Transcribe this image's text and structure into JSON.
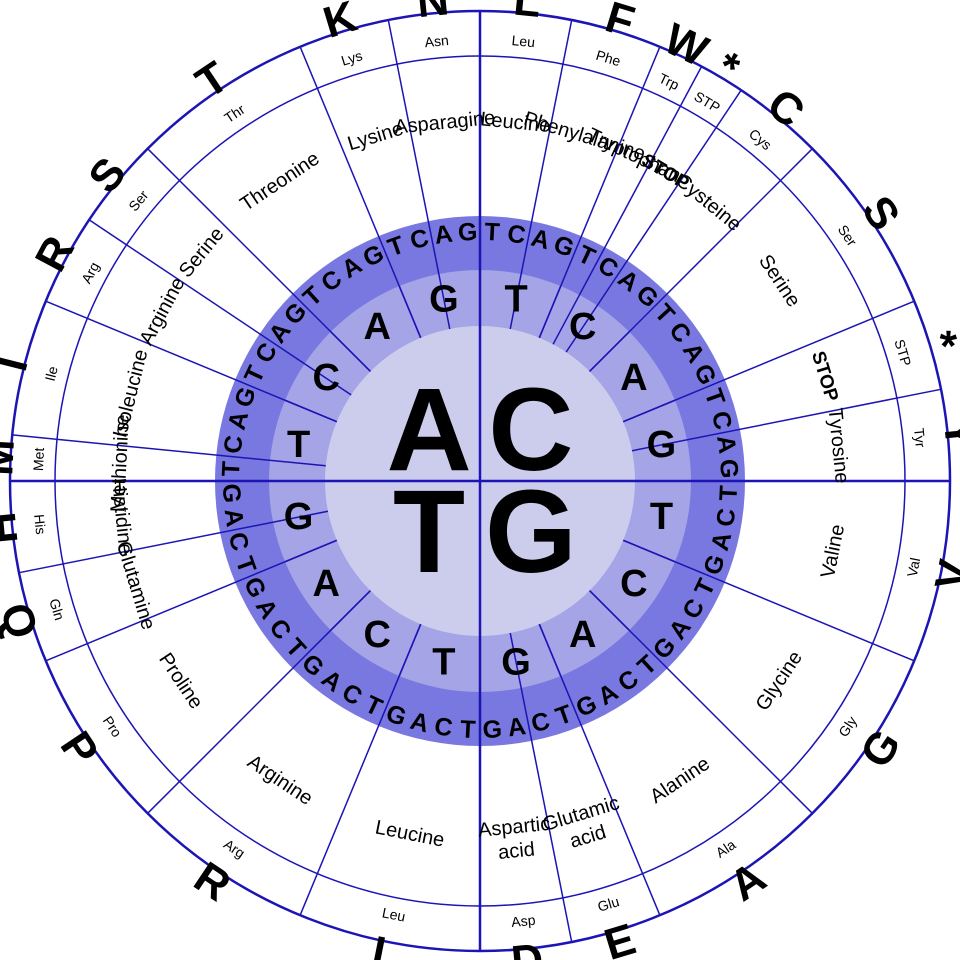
{
  "colors": {
    "line": "#1c14b4",
    "ring_outer": "#7878e0",
    "ring_mid": "#a4a4e6",
    "ring_inner": "#ccccec",
    "background": "#ffffff"
  },
  "first_bases": [
    "A",
    "C",
    "G",
    "T"
  ],
  "second_bases": [
    "T",
    "C",
    "A",
    "G"
  ],
  "third_bases": [
    "T",
    "C",
    "A",
    "G"
  ],
  "amino_acids": [
    {
      "name": "Methionine",
      "abbr": "Met",
      "letter": "M",
      "count": 1
    },
    {
      "name": "Isoleucine",
      "abbr": "Ile",
      "letter": "I",
      "count": 3
    },
    {
      "name": "Arginine",
      "abbr": "Arg",
      "letter": "R",
      "count": 2
    },
    {
      "name": "Serine",
      "abbr": "Ser",
      "letter": "S",
      "count": 2
    },
    {
      "name": "Threonine",
      "abbr": "Thr",
      "letter": "T",
      "count": 4
    },
    {
      "name": "Lysine",
      "abbr": "Lys",
      "letter": "K",
      "count": 2
    },
    {
      "name": "Asparagine",
      "abbr": "Asn",
      "letter": "N",
      "count": 2
    },
    {
      "name": "Leucine",
      "abbr": "Leu",
      "letter": "L",
      "count": 2
    },
    {
      "name": "Phenylalanine",
      "abbr": "Phe",
      "letter": "F",
      "count": 2
    },
    {
      "name": "Tryptophan",
      "abbr": "Trp",
      "letter": "W",
      "count": 1
    },
    {
      "name": "STOP",
      "abbr": "STP",
      "letter": "*",
      "count": 1
    },
    {
      "name": "Cysteine",
      "abbr": "Cys",
      "letter": "C",
      "count": 2
    },
    {
      "name": "Serine",
      "abbr": "Ser",
      "letter": "S",
      "count": 4
    },
    {
      "name": "STOP",
      "abbr": "STP",
      "letter": "*",
      "count": 2
    },
    {
      "name": "Tyrosine",
      "abbr": "Tyr",
      "letter": "Y",
      "count": 2
    },
    {
      "name": "Valine",
      "abbr": "Val",
      "letter": "V",
      "count": 4
    },
    {
      "name": "Glycine",
      "abbr": "Gly",
      "letter": "G",
      "count": 4
    },
    {
      "name": "Alanine",
      "abbr": "Ala",
      "letter": "A",
      "count": 4
    },
    {
      "name": "Glutamic acid",
      "abbr": "Glu",
      "letter": "E",
      "count": 2
    },
    {
      "name": "Aspartic acid",
      "abbr": "Asp",
      "letter": "D",
      "count": 2
    },
    {
      "name": "Leucine",
      "abbr": "Leu",
      "letter": "L",
      "count": 4
    },
    {
      "name": "Arginine",
      "abbr": "Arg",
      "letter": "R",
      "count": 4
    },
    {
      "name": "Proline",
      "abbr": "Pro",
      "letter": "P",
      "count": 4
    },
    {
      "name": "Glutamine",
      "abbr": "Gln",
      "letter": "Q",
      "count": 2
    },
    {
      "name": "Histidine",
      "abbr": "His",
      "letter": "H",
      "count": 2
    }
  ]
}
